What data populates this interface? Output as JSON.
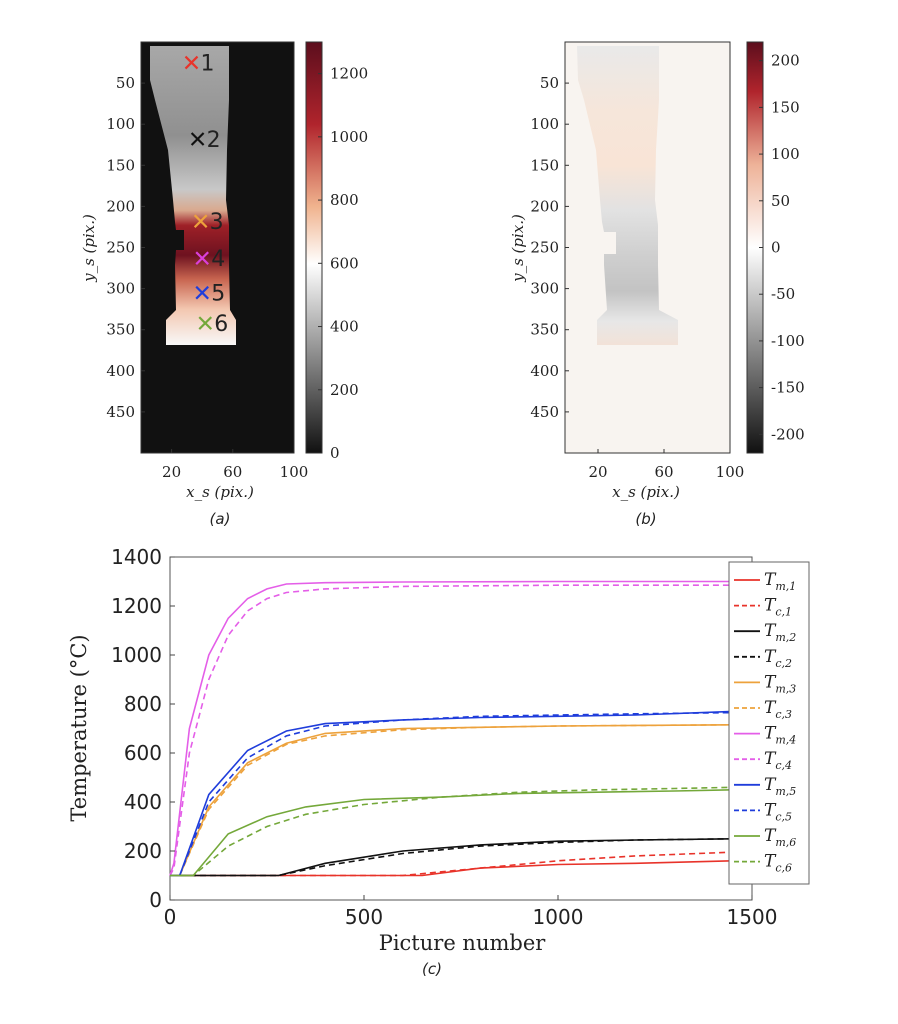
{
  "colors": {
    "series": [
      "#e8332a",
      "#111111",
      "#eda23c",
      "#e45ee8",
      "#1f3ddb",
      "#74a83a"
    ],
    "heatmap_dark": "#111111",
    "diverging_neutral": "#f8f4f0"
  },
  "chart_data": [
    {
      "type": "heatmap",
      "caption": "(a)",
      "xlabel": "x_s (pix.)",
      "ylabel": "y_s (pix.)",
      "xlim": [
        0,
        100
      ],
      "ylim": [
        500,
        0
      ],
      "xticks": [
        "20",
        "60",
        "100"
      ],
      "yticks": [
        "50",
        "100",
        "150",
        "200",
        "250",
        "300",
        "350",
        "400",
        "450"
      ],
      "colorbar": {
        "range": [
          0,
          1300
        ],
        "ticks": [
          "0",
          "200",
          "400",
          "600",
          "800",
          "1000",
          "1200"
        ]
      },
      "markers": [
        {
          "label": "1",
          "x": 33,
          "y": 25,
          "color": "#e8332a"
        },
        {
          "label": "2",
          "x": 37,
          "y": 118,
          "color": "#111111"
        },
        {
          "label": "3",
          "x": 39,
          "y": 218,
          "color": "#eda23c"
        },
        {
          "label": "4",
          "x": 40,
          "y": 263,
          "color": "#d93fd9"
        },
        {
          "label": "5",
          "x": 40,
          "y": 305,
          "color": "#1f3ddb"
        },
        {
          "label": "6",
          "x": 42,
          "y": 342,
          "color": "#74a83a"
        }
      ]
    },
    {
      "type": "heatmap",
      "caption": "(b)",
      "xlabel": "x_s (pix.)",
      "ylabel": "y_s (pix.)",
      "xlim": [
        0,
        100
      ],
      "ylim": [
        500,
        0
      ],
      "xticks": [
        "20",
        "60",
        "100"
      ],
      "yticks": [
        "50",
        "100",
        "150",
        "200",
        "250",
        "300",
        "350",
        "400",
        "450"
      ],
      "colorbar": {
        "range": [
          -220,
          220
        ],
        "ticks": [
          "200",
          "150",
          "100",
          "50",
          "0",
          "-50",
          "-100",
          "-150",
          "-200"
        ]
      }
    },
    {
      "type": "line",
      "caption": "(c)",
      "xlabel": "Picture number",
      "ylabel": "Temperature (°C)",
      "xlim": [
        0,
        1500
      ],
      "ylim": [
        0,
        1400
      ],
      "xticks": [
        "0",
        "500",
        "1000",
        "1500"
      ],
      "yticks": [
        "0",
        "200",
        "400",
        "600",
        "800",
        "1000",
        "1200",
        "1400"
      ],
      "legend_position": "right",
      "series": [
        {
          "name": "T_m,1",
          "style": "solid",
          "color": "#e8332a",
          "x": [
            0,
            650,
            800,
            1000,
            1200,
            1450
          ],
          "y": [
            100,
            100,
            130,
            145,
            150,
            160
          ]
        },
        {
          "name": "T_c,1",
          "style": "dashed",
          "color": "#e8332a",
          "x": [
            0,
            600,
            800,
            1000,
            1200,
            1450
          ],
          "y": [
            100,
            100,
            130,
            160,
            180,
            195
          ]
        },
        {
          "name": "T_m,2",
          "style": "solid",
          "color": "#111111",
          "x": [
            0,
            280,
            400,
            600,
            800,
            1000,
            1200,
            1450
          ],
          "y": [
            100,
            100,
            150,
            200,
            225,
            240,
            245,
            250
          ]
        },
        {
          "name": "T_c,2",
          "style": "dashed",
          "color": "#111111",
          "x": [
            0,
            280,
            400,
            600,
            800,
            1000,
            1200,
            1450
          ],
          "y": [
            100,
            100,
            140,
            190,
            220,
            235,
            245,
            250
          ]
        },
        {
          "name": "T_m,3",
          "style": "solid",
          "color": "#eda23c",
          "x": [
            0,
            25,
            100,
            200,
            300,
            400,
            600,
            800,
            1000,
            1450
          ],
          "y": [
            100,
            100,
            380,
            560,
            640,
            680,
            700,
            705,
            710,
            715
          ]
        },
        {
          "name": "T_c,3",
          "style": "dashed",
          "color": "#eda23c",
          "x": [
            0,
            25,
            100,
            200,
            300,
            400,
            600,
            800,
            1000,
            1450
          ],
          "y": [
            100,
            100,
            370,
            550,
            635,
            670,
            695,
            705,
            710,
            715
          ]
        },
        {
          "name": "T_m,4",
          "style": "solid",
          "color": "#e45ee8",
          "x": [
            0,
            10,
            50,
            100,
            150,
            200,
            250,
            300,
            400,
            600,
            1000,
            1450
          ],
          "y": [
            100,
            150,
            700,
            1000,
            1150,
            1230,
            1270,
            1290,
            1295,
            1298,
            1300,
            1300
          ]
        },
        {
          "name": "T_c,4",
          "style": "dashed",
          "color": "#e45ee8",
          "x": [
            0,
            10,
            50,
            100,
            150,
            200,
            250,
            300,
            400,
            600,
            1000,
            1450
          ],
          "y": [
            100,
            130,
            600,
            900,
            1080,
            1180,
            1230,
            1255,
            1270,
            1280,
            1285,
            1285
          ]
        },
        {
          "name": "T_m,5",
          "style": "solid",
          "color": "#1f3ddb",
          "x": [
            0,
            25,
            100,
            200,
            300,
            400,
            600,
            800,
            1000,
            1200,
            1450
          ],
          "y": [
            100,
            100,
            430,
            610,
            690,
            720,
            735,
            745,
            750,
            755,
            770
          ]
        },
        {
          "name": "T_c,5",
          "style": "dashed",
          "color": "#1f3ddb",
          "x": [
            0,
            25,
            100,
            200,
            300,
            400,
            600,
            800,
            1000,
            1200,
            1450
          ],
          "y": [
            100,
            100,
            400,
            580,
            670,
            710,
            735,
            750,
            755,
            760,
            765
          ]
        },
        {
          "name": "T_m,6",
          "style": "solid",
          "color": "#74a83a",
          "x": [
            0,
            60,
            150,
            250,
            350,
            500,
            700,
            900,
            1100,
            1300,
            1450
          ],
          "y": [
            100,
            100,
            270,
            340,
            380,
            410,
            420,
            435,
            440,
            445,
            450
          ]
        },
        {
          "name": "T_c,6",
          "style": "dashed",
          "color": "#74a83a",
          "x": [
            0,
            60,
            150,
            250,
            350,
            500,
            700,
            900,
            1100,
            1300,
            1450
          ],
          "y": [
            100,
            100,
            220,
            300,
            350,
            390,
            420,
            440,
            450,
            455,
            460
          ]
        }
      ]
    }
  ]
}
